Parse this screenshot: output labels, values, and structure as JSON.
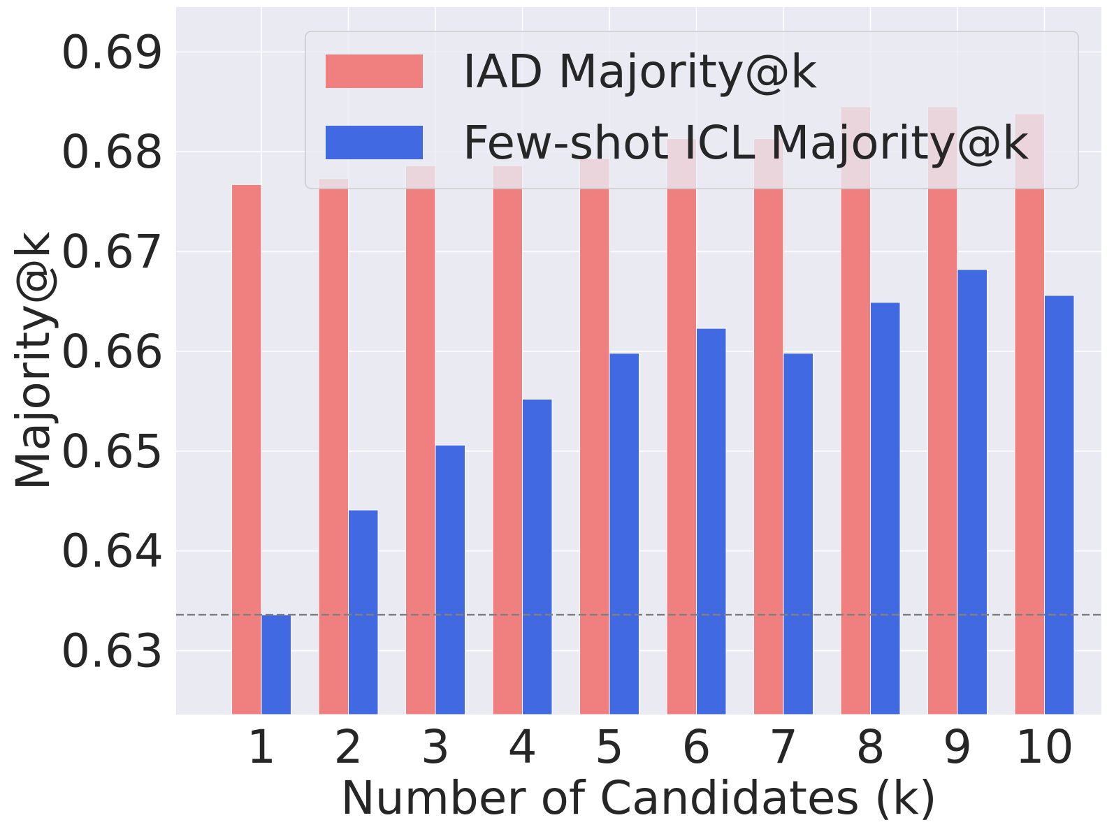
{
  "chart_data": {
    "type": "bar",
    "title": "",
    "xlabel": "Number of Candidates (k)",
    "ylabel": "Majority@k",
    "categories": [
      "1",
      "2",
      "3",
      "4",
      "5",
      "6",
      "7",
      "8",
      "9",
      "10"
    ],
    "series": [
      {
        "name": "IAD Majority@k",
        "color": "#f08080",
        "values": [
          0.6767,
          0.6773,
          0.6786,
          0.6786,
          0.6793,
          0.6813,
          0.6813,
          0.6845,
          0.6845,
          0.6838
        ]
      },
      {
        "name": "Few-shot ICL Majority@k",
        "color": "#4169e1",
        "values": [
          0.6336,
          0.6441,
          0.6506,
          0.6552,
          0.6598,
          0.6623,
          0.6598,
          0.6649,
          0.6682,
          0.6656
        ]
      }
    ],
    "ylim": [
      0.6236,
      0.6945
    ],
    "yticks": [
      "0.63",
      "0.64",
      "0.65",
      "0.66",
      "0.67",
      "0.68",
      "0.69"
    ],
    "baseline": {
      "value": 0.6336,
      "style": "dashed",
      "color": "#808080"
    },
    "grid": true,
    "legend_position": "top-right",
    "background": "#eaeaf2"
  }
}
